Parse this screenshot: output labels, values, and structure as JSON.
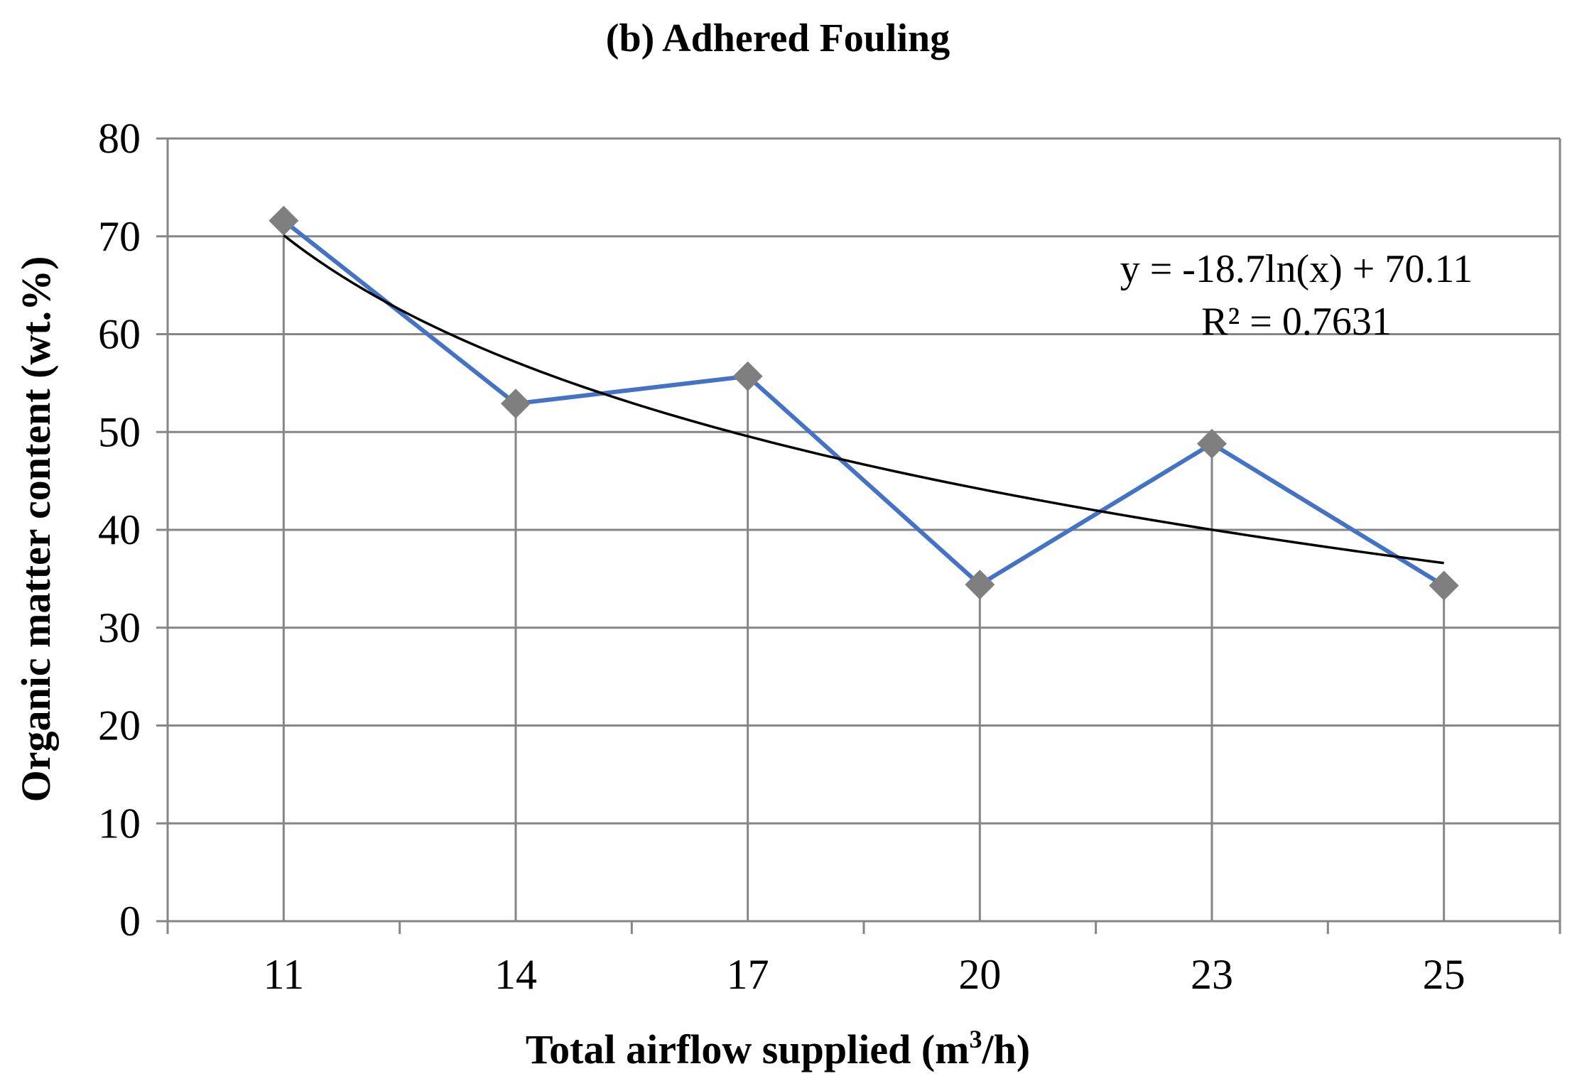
{
  "chart_data": {
    "type": "line",
    "title": "(b) Adhered Fouling",
    "xlabel": "Total airflow supplied (m",
    "xlabel_sup": "3",
    "xlabel_tail": "/h)",
    "ylabel": "Organic matter content (wt.%)",
    "categories": [
      "11",
      "14",
      "17",
      "20",
      "23",
      "25"
    ],
    "series": [
      {
        "values": [
          71.6,
          52.9,
          55.7,
          34.4,
          48.8,
          34.3
        ],
        "color": "#4472C4",
        "marker_color": "#7F7F7F"
      }
    ],
    "trendline": {
      "type": "logarithmic",
      "a": -18.7,
      "b": 70.11,
      "color": "#000000",
      "equation": "y = -18.7ln(x) + 70.11",
      "r2": "R² = 0.7631"
    },
    "ylim": [
      0,
      80
    ],
    "yticks": [
      "0",
      "10",
      "20",
      "30",
      "40",
      "50",
      "60",
      "70",
      "80"
    ],
    "grid": true,
    "drop_lines": true,
    "gridline_color": "#868686"
  }
}
